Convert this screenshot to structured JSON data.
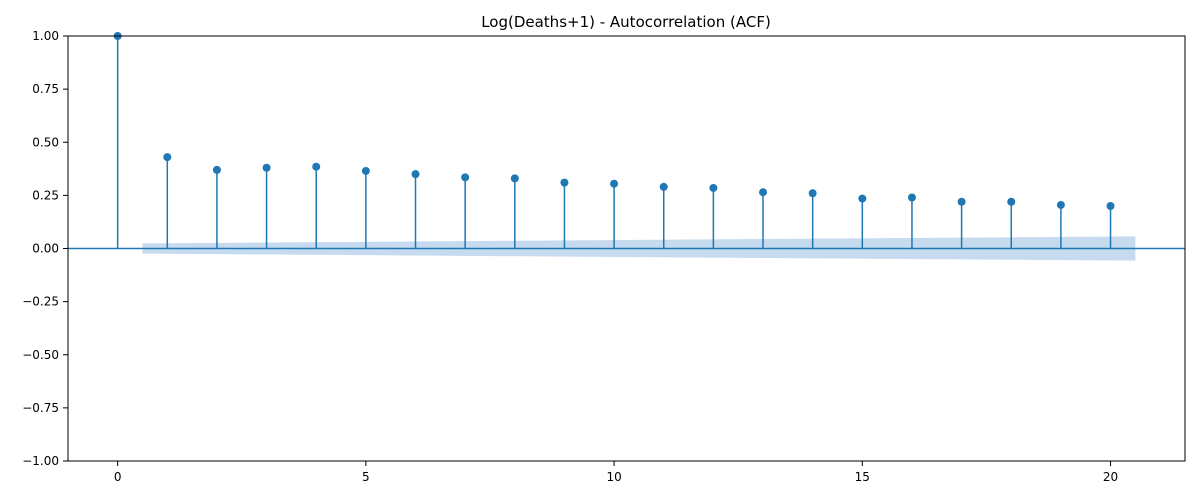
{
  "chart_data": {
    "type": "stem",
    "title": "Log(Deaths+1) - Autocorrelation (ACF)",
    "xlabel": "",
    "ylabel": "",
    "xlim": [
      -1,
      21.5
    ],
    "ylim": [
      -1.0,
      1.0
    ],
    "xticks": [
      0,
      5,
      10,
      15,
      20
    ],
    "xtick_labels": [
      "0",
      "5",
      "10",
      "15",
      "20"
    ],
    "yticks": [
      -1.0,
      -0.75,
      -0.5,
      -0.25,
      0.0,
      0.25,
      0.5,
      0.75,
      1.0
    ],
    "ytick_labels": [
      "−1.00",
      "−0.75",
      "−0.50",
      "−0.25",
      "0.00",
      "0.25",
      "0.50",
      "0.75",
      "1.00"
    ],
    "grid": false,
    "lags": [
      0,
      1,
      2,
      3,
      4,
      5,
      6,
      7,
      8,
      9,
      10,
      11,
      12,
      13,
      14,
      15,
      16,
      17,
      18,
      19,
      20
    ],
    "acf": [
      1.0,
      0.43,
      0.37,
      0.38,
      0.385,
      0.365,
      0.35,
      0.335,
      0.33,
      0.31,
      0.305,
      0.29,
      0.285,
      0.265,
      0.26,
      0.235,
      0.24,
      0.22,
      0.22,
      0.205,
      0.2
    ],
    "confidence_band": {
      "lag_range": [
        0.5,
        20.5
      ],
      "upper": [
        0.024,
        0.057
      ],
      "lower": [
        -0.024,
        -0.057
      ]
    },
    "colors": {
      "stem": "#1f77b4",
      "band": "#c6dbef",
      "axis": "#000000"
    }
  }
}
